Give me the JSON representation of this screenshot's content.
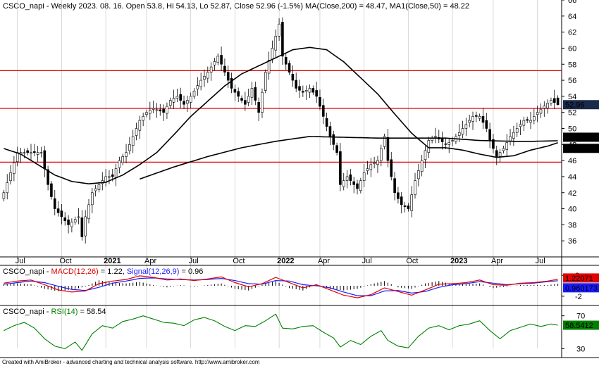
{
  "footer": {
    "credit": "Created with AmiBroker - advanced charting and technical analysis software. http://www.amibroker.com"
  },
  "colors": {
    "up_candle": "#ffffff",
    "down_candle": "#000000",
    "ma_line": "#000000",
    "level_line": "#e00000",
    "macd_line": "#e00000",
    "signal_line": "#1a1aff",
    "histogram": "#000000",
    "rsi_line": "#008000",
    "grid": "#c0c0c0"
  },
  "chart_data": [
    {
      "type": "candlestick",
      "title": {
        "symbol": "CSCO_napi",
        "period": "Weekly",
        "date": "2023. 08. 16.",
        "text": "CSCO_napi - Weekly 2023. 08. 16. Open 53.8, Hi 54.13, Lo 52.87, Close 52.96 (-1.5%) MA(Close,200) = 48.47, MA1(Close,50) = 48.22",
        "open": 53.8,
        "high": 54.13,
        "low": 52.87,
        "close": 52.96,
        "change": "-1.5%",
        "ma200_label": "MA(Close,200)",
        "ma200": 48.47,
        "ma50_label": "MA1(Close,50)",
        "ma50": 48.22
      },
      "ylim": [
        34,
        66
      ],
      "y_ticks": [
        36,
        38,
        40,
        42,
        44,
        46,
        48,
        50,
        52,
        54,
        56,
        58,
        60,
        62,
        64,
        66
      ],
      "x_tick_labels": [
        "Jul",
        "Oct",
        "2021",
        "Apr",
        "Jul",
        "Oct",
        "2022",
        "Apr",
        "Jul",
        "Oct",
        "2023",
        "Apr",
        "Jul"
      ],
      "x_tick_bold": [
        false,
        false,
        true,
        false,
        false,
        false,
        true,
        false,
        false,
        false,
        true,
        false,
        false
      ],
      "x_tick_week": [
        4,
        17,
        30,
        42,
        55,
        68,
        81,
        93,
        106,
        119,
        132,
        144,
        157
      ],
      "weeks": 164,
      "close_anchors": [
        [
          0,
          42
        ],
        [
          2,
          44.5
        ],
        [
          4,
          47
        ],
        [
          8,
          47
        ],
        [
          11,
          47
        ],
        [
          12,
          45
        ],
        [
          13,
          43
        ],
        [
          15,
          40
        ],
        [
          17,
          39
        ],
        [
          19,
          38
        ],
        [
          22,
          39
        ],
        [
          23,
          36.5
        ],
        [
          24,
          39
        ],
        [
          26,
          42
        ],
        [
          28,
          43
        ],
        [
          30,
          44
        ],
        [
          32,
          44
        ],
        [
          34,
          46
        ],
        [
          36,
          47
        ],
        [
          38,
          49
        ],
        [
          40,
          51
        ],
        [
          42,
          52
        ],
        [
          44,
          52.5
        ],
        [
          47,
          52
        ],
        [
          49,
          53.5
        ],
        [
          51,
          54
        ],
        [
          53,
          53
        ],
        [
          55,
          54
        ],
        [
          58,
          56
        ],
        [
          60,
          57
        ],
        [
          63,
          59
        ],
        [
          65,
          57
        ],
        [
          67,
          55
        ],
        [
          69,
          54
        ],
        [
          71,
          53
        ],
        [
          73,
          55
        ],
        [
          75,
          52
        ],
        [
          77,
          57
        ],
        [
          79,
          60
        ],
        [
          81,
          63
        ],
        [
          82,
          59
        ],
        [
          84,
          57
        ],
        [
          86,
          55
        ],
        [
          88,
          54.5
        ],
        [
          90,
          55
        ],
        [
          92,
          54
        ],
        [
          94,
          51.5
        ],
        [
          96,
          49
        ],
        [
          98,
          47
        ],
        [
          99,
          43
        ],
        [
          101,
          44
        ],
        [
          104,
          42.5
        ],
        [
          106,
          44.5
        ],
        [
          108,
          45.5
        ],
        [
          110,
          46
        ],
        [
          112,
          49
        ],
        [
          113,
          46
        ],
        [
          115,
          42
        ],
        [
          117,
          40.5
        ],
        [
          119,
          40
        ],
        [
          121,
          43.5
        ],
        [
          123,
          46
        ],
        [
          125,
          48.5
        ],
        [
          127,
          49
        ],
        [
          130,
          48
        ],
        [
          132,
          48.5
        ],
        [
          134,
          49.5
        ],
        [
          136,
          50.5
        ],
        [
          138,
          51.5
        ],
        [
          140,
          51.5
        ],
        [
          142,
          50
        ],
        [
          143,
          48.5
        ],
        [
          145,
          46.5
        ],
        [
          147,
          47.5
        ],
        [
          149,
          49
        ],
        [
          151,
          50
        ],
        [
          153,
          51
        ],
        [
          155,
          51
        ],
        [
          157,
          52
        ],
        [
          159,
          52.8
        ],
        [
          161,
          53.5
        ],
        [
          163,
          52.96
        ]
      ],
      "ma200_anchors": [
        [
          40,
          43.7
        ],
        [
          50,
          45.2
        ],
        [
          60,
          46.5
        ],
        [
          70,
          47.6
        ],
        [
          80,
          48.4
        ],
        [
          90,
          49
        ],
        [
          100,
          48.9
        ],
        [
          110,
          48.8
        ],
        [
          120,
          48.8
        ],
        [
          130,
          48.8
        ],
        [
          140,
          48.5
        ],
        [
          150,
          48.4
        ],
        [
          156,
          48.4
        ],
        [
          163,
          48.47
        ]
      ],
      "ma50_anchors": [
        [
          0,
          47.5
        ],
        [
          5,
          46.8
        ],
        [
          10,
          45.5
        ],
        [
          15,
          44.2
        ],
        [
          20,
          43.4
        ],
        [
          25,
          43.1
        ],
        [
          30,
          43.3
        ],
        [
          35,
          44.2
        ],
        [
          40,
          45.5
        ],
        [
          45,
          47
        ],
        [
          50,
          49.2
        ],
        [
          55,
          51.5
        ],
        [
          60,
          53.4
        ],
        [
          65,
          55.3
        ],
        [
          70,
          56.8
        ],
        [
          75,
          57.8
        ],
        [
          80,
          58.8
        ],
        [
          85,
          59.8
        ],
        [
          90,
          60.1
        ],
        [
          95,
          59.8
        ],
        [
          100,
          58.3
        ],
        [
          105,
          56.3
        ],
        [
          110,
          54.3
        ],
        [
          115,
          51.8
        ],
        [
          120,
          49.4
        ],
        [
          125,
          47.6
        ],
        [
          130,
          47.6
        ],
        [
          135,
          47.3
        ],
        [
          140,
          46.8
        ],
        [
          145,
          46.4
        ],
        [
          150,
          46.6
        ],
        [
          155,
          47.3
        ],
        [
          160,
          47.8
        ],
        [
          163,
          48.22
        ]
      ],
      "horizontal_levels": [
        57.2,
        52.5,
        45.8
      ],
      "right_tags": [
        {
          "text": "52.96",
          "value": 52.96,
          "bg": "#1a2a4a",
          "fg": "#ffffff"
        },
        {
          "text": "48.4697",
          "value": 48.4697,
          "bg": "#000000",
          "fg": "#ffffff"
        },
        {
          "text": "48.2201",
          "value": 48.2201,
          "bg": "#000000",
          "fg": "#ffffff"
        }
      ]
    },
    {
      "type": "macd",
      "title": {
        "symbol": "CSCO_napi",
        "macd_label": "MACD(12,26)",
        "macd_value": 1.22,
        "signal_label": "Signal(12,26,9)",
        "signal_value": 0.96
      },
      "ylim": [
        -3.5,
        3.5
      ],
      "y_ticks": [
        2,
        -2
      ],
      "zero_line": true,
      "macd_anchors": [
        [
          0,
          0.5
        ],
        [
          4,
          0.9
        ],
        [
          8,
          1.1
        ],
        [
          12,
          0.2
        ],
        [
          16,
          -0.8
        ],
        [
          20,
          -1.2
        ],
        [
          24,
          -1
        ],
        [
          28,
          0.4
        ],
        [
          32,
          0.9
        ],
        [
          36,
          1.2
        ],
        [
          40,
          1.9
        ],
        [
          44,
          1.6
        ],
        [
          48,
          1.1
        ],
        [
          52,
          1.3
        ],
        [
          56,
          1
        ],
        [
          60,
          1.3
        ],
        [
          64,
          1.7
        ],
        [
          68,
          0.6
        ],
        [
          72,
          -0.2
        ],
        [
          76,
          0.4
        ],
        [
          80,
          1.6
        ],
        [
          84,
          0.6
        ],
        [
          88,
          -0.4
        ],
        [
          92,
          0.2
        ],
        [
          96,
          -0.8
        ],
        [
          100,
          -1.8
        ],
        [
          104,
          -2.3
        ],
        [
          108,
          -1.7
        ],
        [
          112,
          -0.4
        ],
        [
          116,
          -1.1
        ],
        [
          120,
          -1.8
        ],
        [
          124,
          -0.8
        ],
        [
          128,
          0.3
        ],
        [
          132,
          0.4
        ],
        [
          136,
          0.6
        ],
        [
          140,
          1.1
        ],
        [
          144,
          0.2
        ],
        [
          148,
          0.1
        ],
        [
          152,
          0.5
        ],
        [
          156,
          0.6
        ],
        [
          160,
          0.9
        ],
        [
          163,
          1.22
        ]
      ],
      "signal_anchors": [
        [
          0,
          0.3
        ],
        [
          4,
          0.6
        ],
        [
          8,
          0.9
        ],
        [
          12,
          0.6
        ],
        [
          16,
          -0.1
        ],
        [
          20,
          -0.7
        ],
        [
          24,
          -0.9
        ],
        [
          28,
          -0.3
        ],
        [
          32,
          0.5
        ],
        [
          36,
          0.9
        ],
        [
          40,
          1.4
        ],
        [
          44,
          1.5
        ],
        [
          48,
          1.3
        ],
        [
          52,
          1.2
        ],
        [
          56,
          1.1
        ],
        [
          60,
          1.2
        ],
        [
          64,
          1.4
        ],
        [
          68,
          1
        ],
        [
          72,
          0.4
        ],
        [
          76,
          0.3
        ],
        [
          80,
          1
        ],
        [
          84,
          0.9
        ],
        [
          88,
          0.2
        ],
        [
          92,
          0
        ],
        [
          96,
          -0.4
        ],
        [
          100,
          -1.2
        ],
        [
          104,
          -1.9
        ],
        [
          108,
          -1.9
        ],
        [
          112,
          -1
        ],
        [
          116,
          -0.9
        ],
        [
          120,
          -1.4
        ],
        [
          124,
          -1.1
        ],
        [
          128,
          -0.3
        ],
        [
          132,
          0.2
        ],
        [
          136,
          0.4
        ],
        [
          140,
          0.8
        ],
        [
          144,
          0.5
        ],
        [
          148,
          0.2
        ],
        [
          152,
          0.4
        ],
        [
          156,
          0.5
        ],
        [
          160,
          0.8
        ],
        [
          163,
          0.96
        ]
      ],
      "right_tags": [
        {
          "text": "1.22071",
          "value": 1.22071,
          "bg": "#e00000",
          "fg": "#ffffff"
        },
        {
          "text": "0.960173",
          "value": 0.960173,
          "bg": "#1a1aff",
          "fg": "#ffffff"
        }
      ]
    },
    {
      "type": "rsi",
      "title": {
        "symbol": "CSCO_napi",
        "rsi_label": "RSI(14)",
        "rsi_value": 58.54
      },
      "ylim": [
        20,
        80
      ],
      "y_ticks": [
        70,
        30
      ],
      "rsi_anchors": [
        [
          0,
          52
        ],
        [
          3,
          58
        ],
        [
          6,
          62
        ],
        [
          9,
          55
        ],
        [
          12,
          42
        ],
        [
          15,
          33
        ],
        [
          18,
          30
        ],
        [
          21,
          38
        ],
        [
          23,
          28
        ],
        [
          26,
          48
        ],
        [
          29,
          58
        ],
        [
          32,
          55
        ],
        [
          35,
          63
        ],
        [
          38,
          66
        ],
        [
          41,
          70
        ],
        [
          44,
          66
        ],
        [
          47,
          62
        ],
        [
          50,
          61
        ],
        [
          53,
          58
        ],
        [
          56,
          65
        ],
        [
          59,
          68
        ],
        [
          62,
          64
        ],
        [
          65,
          57
        ],
        [
          68,
          52
        ],
        [
          71,
          58
        ],
        [
          74,
          57
        ],
        [
          77,
          64
        ],
        [
          80,
          72
        ],
        [
          82,
          55
        ],
        [
          85,
          54
        ],
        [
          88,
          57
        ],
        [
          91,
          58
        ],
        [
          94,
          50
        ],
        [
          97,
          43
        ],
        [
          99,
          32
        ],
        [
          102,
          40
        ],
        [
          105,
          35
        ],
        [
          108,
          45
        ],
        [
          111,
          52
        ],
        [
          113,
          40
        ],
        [
          116,
          33
        ],
        [
          119,
          31
        ],
        [
          122,
          45
        ],
        [
          125,
          55
        ],
        [
          128,
          58
        ],
        [
          131,
          53
        ],
        [
          134,
          58
        ],
        [
          137,
          60
        ],
        [
          140,
          64
        ],
        [
          143,
          52
        ],
        [
          146,
          42
        ],
        [
          149,
          52
        ],
        [
          152,
          56
        ],
        [
          155,
          60
        ],
        [
          158,
          57
        ],
        [
          161,
          60
        ],
        [
          163,
          58.54
        ]
      ],
      "right_tags": [
        {
          "text": "58.5412",
          "value": 58.5412,
          "bg": "#008000",
          "fg": "#ffffff"
        }
      ]
    }
  ]
}
